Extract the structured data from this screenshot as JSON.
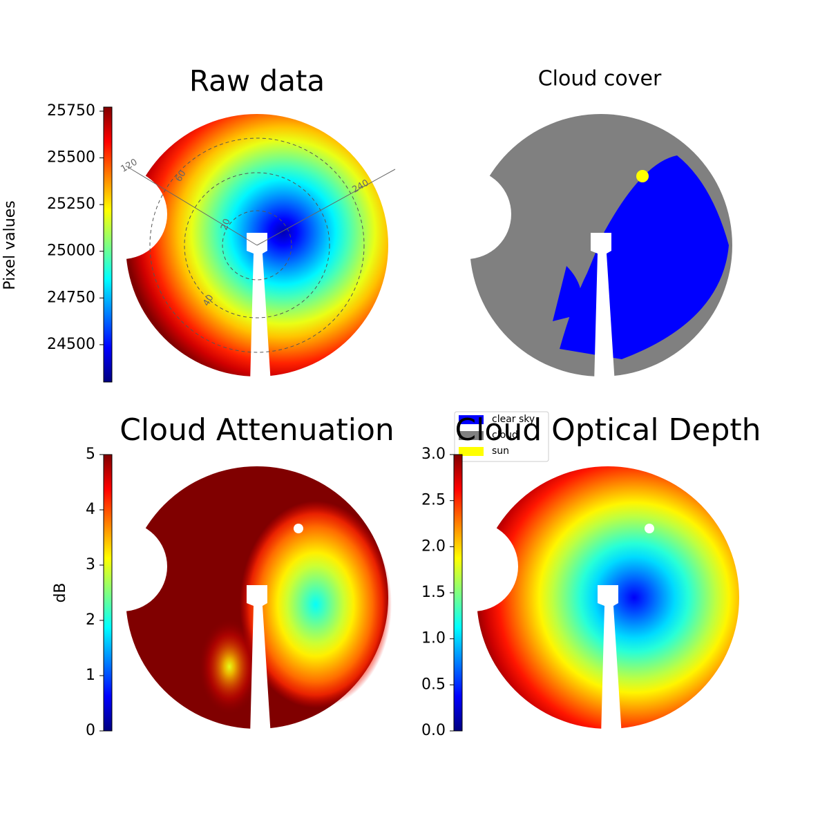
{
  "chart_data": [
    {
      "type": "image",
      "title": "Raw data",
      "colormap": "jet",
      "colorbar_label": "Pixel values",
      "clim": [
        24300,
        25772
      ],
      "cticks": [
        24500,
        24750,
        25000,
        25250,
        25500,
        25750
      ],
      "polar_labels": [
        "120",
        "60",
        "240",
        "20",
        "40"
      ]
    },
    {
      "type": "image",
      "title": "Cloud cover",
      "legend": [
        {
          "name": "clear sky",
          "color": "#0000ff"
        },
        {
          "name": "cloud",
          "color": "#808080"
        },
        {
          "name": "sun",
          "color": "#ffff00"
        }
      ]
    },
    {
      "type": "image",
      "title": "Cloud Attenuation",
      "colormap": "jet",
      "colorbar_label": "dB",
      "clim": [
        0,
        5
      ],
      "cticks": [
        0,
        1,
        2,
        3,
        4,
        5
      ]
    },
    {
      "type": "image",
      "title": "Cloud Optical Depth",
      "colormap": "jet",
      "clim": [
        0,
        3
      ],
      "cticks": [
        {
          "value": 0,
          "label": "0.0"
        },
        0.5,
        {
          "value": 1,
          "label": "1.0"
        },
        1.5,
        {
          "value": 2,
          "label": "2.0"
        },
        2.5,
        {
          "value": 3,
          "label": "3.0"
        }
      ]
    }
  ]
}
